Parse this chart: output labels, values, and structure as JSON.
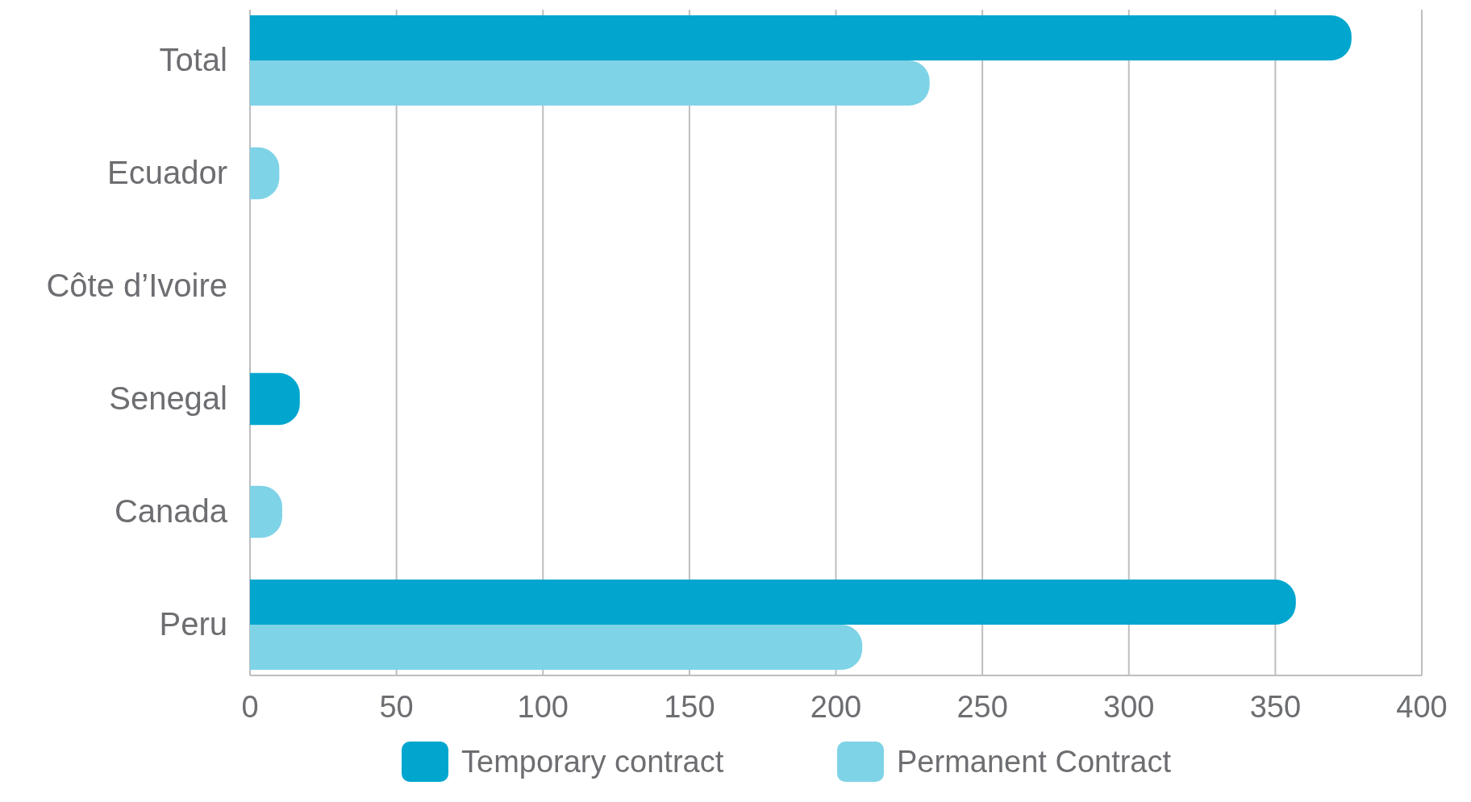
{
  "chart_data": {
    "type": "bar",
    "orientation": "horizontal",
    "categories": [
      "Total",
      "Ecuador",
      "Côte d’Ivoire",
      "Senegal",
      "Canada",
      "Peru"
    ],
    "series": [
      {
        "name": "Temporary contract",
        "color": "#00a6ce",
        "values": [
          376,
          null,
          null,
          17,
          null,
          357
        ]
      },
      {
        "name": "Permanent Contract",
        "color": "#7fd3e7",
        "values": [
          232,
          10,
          null,
          null,
          11,
          209
        ]
      }
    ],
    "xlim": [
      0,
      400
    ],
    "xticks": [
      0,
      50,
      100,
      150,
      200,
      250,
      300,
      350,
      400
    ],
    "grid": "x",
    "legend": "bottom"
  }
}
